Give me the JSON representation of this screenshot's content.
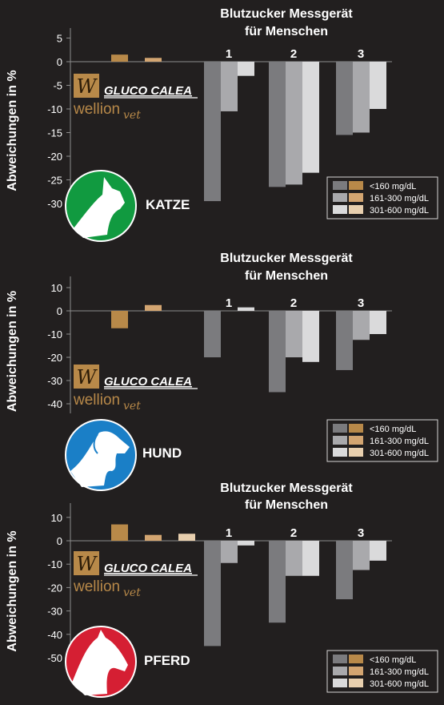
{
  "panel_title_line1": "Blutzucker Messgerät",
  "panel_title_line2": "für Menschen",
  "ylabel": "Abweichungen in %",
  "logo": {
    "brand_top": "GLUCO CALEA",
    "brand_bottom": "wellion",
    "brand_suffix": "vet",
    "mark": "W"
  },
  "legend_labels": [
    "<160 mg/dL",
    "161-300 mg/dL",
    "301-600 mg/dL"
  ],
  "colors": {
    "background": "#221f1f",
    "vet_series": [
      "#b88949",
      "#d3a571",
      "#e8cfae"
    ],
    "human_series": [
      "#7b7b7e",
      "#a9a9ac",
      "#dadadb"
    ],
    "katze_icon": "#119a40",
    "hund_icon": "#1a7fc7",
    "pferd_icon": "#d51f33"
  },
  "chart_data": [
    {
      "type": "bar",
      "animal": "KATZE",
      "icon": "cat-icon",
      "group_labels": [
        "",
        "1",
        "2",
        "3"
      ],
      "series": [
        {
          "name": "<160 mg/dL",
          "values": [
            1.5,
            -29.5,
            -26.5,
            -15.5
          ]
        },
        {
          "name": "161-300 mg/dL",
          "values": [
            0.8,
            -10.5,
            -26,
            -15
          ]
        },
        {
          "name": "301-600 mg/dL",
          "values": [
            0,
            -3,
            -23.5,
            -10
          ]
        }
      ],
      "yticks": [
        5,
        0,
        -5,
        -10,
        -15,
        -20,
        -25,
        -30
      ],
      "ylim": [
        -32,
        6
      ]
    },
    {
      "type": "bar",
      "animal": "HUND",
      "icon": "dog-icon",
      "group_labels": [
        "",
        "1",
        "2",
        "3"
      ],
      "series": [
        {
          "name": "<160 mg/dL",
          "values": [
            -7.5,
            -20,
            -35,
            -25.5
          ]
        },
        {
          "name": "161-300 mg/dL",
          "values": [
            2.5,
            0,
            -20,
            -12.5
          ]
        },
        {
          "name": "301-600 mg/dL",
          "values": [
            0,
            1.5,
            -22,
            -10
          ]
        }
      ],
      "yticks": [
        10,
        0,
        -10,
        -20,
        -30,
        -40
      ],
      "ylim": [
        -41,
        12
      ]
    },
    {
      "type": "bar",
      "animal": "PFERD",
      "icon": "horse-icon",
      "group_labels": [
        "",
        "1",
        "2",
        "3"
      ],
      "series": [
        {
          "name": "<160 mg/dL",
          "values": [
            7,
            -45,
            -35,
            -25
          ]
        },
        {
          "name": "161-300 mg/dL",
          "values": [
            2.5,
            -9.5,
            -15,
            -12.5
          ]
        },
        {
          "name": "301-600 mg/dL",
          "values": [
            3,
            -2,
            -15,
            -8.5
          ]
        }
      ],
      "yticks": [
        10,
        0,
        -10,
        -20,
        -30,
        -40,
        -50
      ],
      "ylim": [
        -52,
        12
      ]
    }
  ]
}
